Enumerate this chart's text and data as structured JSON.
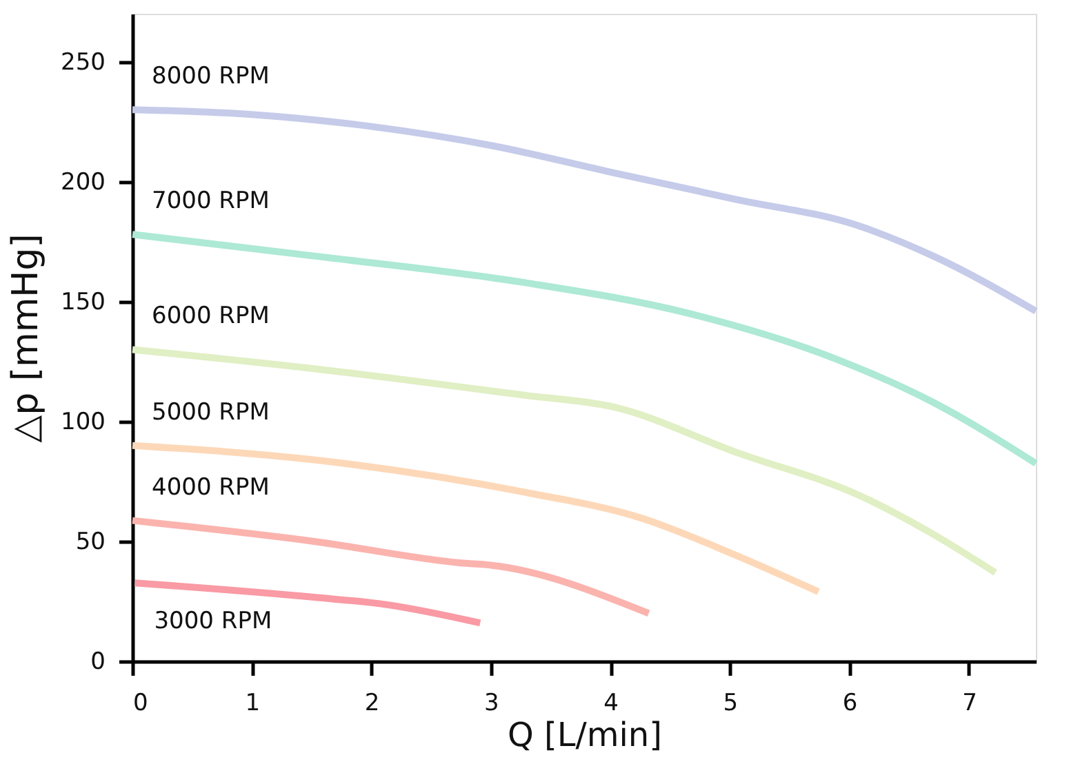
{
  "chart_data": {
    "type": "line",
    "xlabel": "Q [L/min]",
    "ylabel": "△p [mmHg]",
    "xlim": [
      0,
      7.56
    ],
    "ylim": [
      0,
      270
    ],
    "xticks": [
      0,
      1,
      2,
      3,
      4,
      5,
      6,
      7
    ],
    "yticks": [
      0,
      50,
      100,
      150,
      200,
      250
    ],
    "grid": false,
    "legend": false,
    "marker": "none",
    "line_style": "solid",
    "series": [
      {
        "name": "8000 RPM",
        "color": "#c5cbe9",
        "x": [
          0,
          1,
          2,
          3.01,
          4,
          5.06,
          6.05,
          6.7,
          7.56
        ],
        "values": [
          230,
          228,
          223,
          215,
          204,
          192.5,
          182,
          169,
          146
        ]
      },
      {
        "name": "7000 RPM",
        "color": "#ade9d4",
        "x": [
          0,
          1.52,
          3.27,
          4.66,
          5.89,
          6.7,
          7.56
        ],
        "values": [
          178,
          169,
          158,
          145,
          126,
          108,
          82.5
        ]
      },
      {
        "name": "6000 RPM",
        "color": "#e0efc4",
        "x": [
          0,
          1.52,
          3.27,
          4.03,
          5.06,
          6.09,
          6.7,
          7.22
        ],
        "values": [
          130,
          122,
          111,
          106,
          87,
          69,
          53,
          37
        ]
      },
      {
        "name": "5000 RPM",
        "color": "#fdd8b8",
        "x": [
          0,
          1.52,
          3.27,
          4.24,
          5.06,
          5.74
        ],
        "values": [
          90,
          84,
          70.6,
          60,
          44,
          29
        ]
      },
      {
        "name": "4000 RPM",
        "color": "#fbb3ae",
        "x": [
          0,
          1.52,
          2.75,
          3.01,
          4.32
        ],
        "values": [
          58.7,
          50,
          41,
          40,
          20
        ]
      },
      {
        "name": "3000 RPM",
        "color": "#f99aa4",
        "x": [
          0.02,
          1.52,
          2.13,
          2.91
        ],
        "values": [
          32.7,
          26.7,
          23.6,
          16
        ]
      }
    ]
  }
}
